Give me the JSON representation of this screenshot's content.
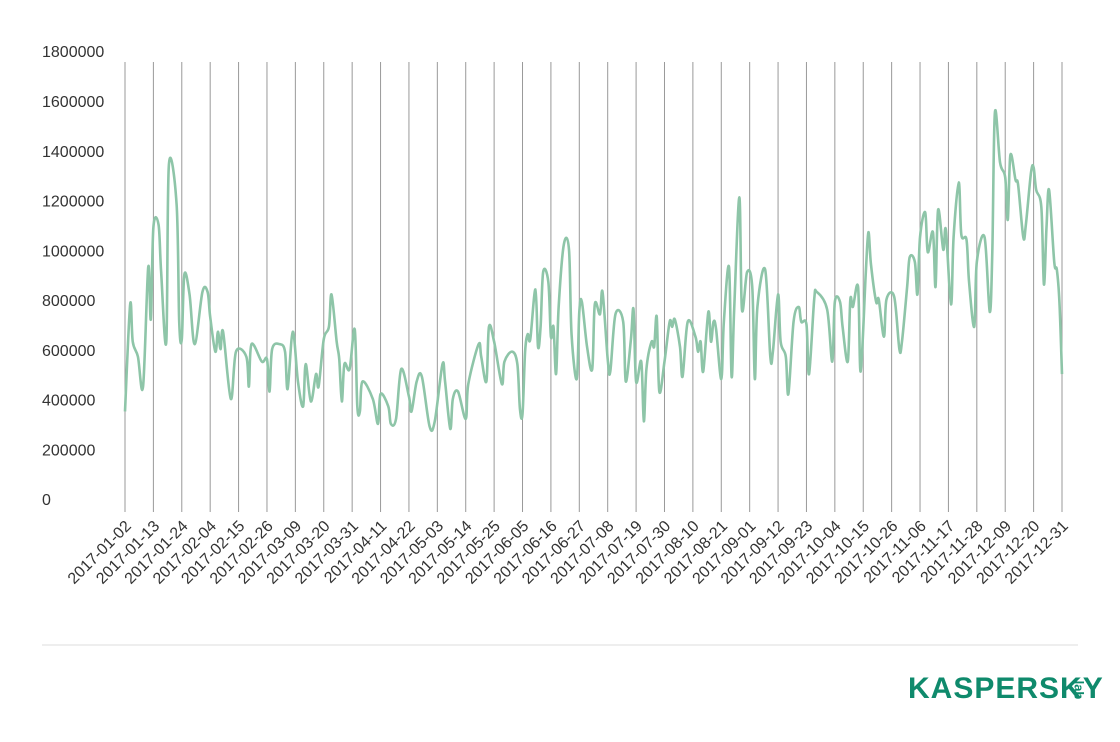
{
  "chart_data": {
    "type": "line",
    "x": [
      "2017-01-02",
      "2017-01-04",
      "2017-01-05",
      "2017-01-07",
      "2017-01-09",
      "2017-01-11",
      "2017-01-12",
      "2017-01-13",
      "2017-01-15",
      "2017-01-16",
      "2017-01-18",
      "2017-01-19",
      "2017-01-22",
      "2017-01-23",
      "2017-01-24",
      "2017-01-25",
      "2017-01-27",
      "2017-01-29",
      "2017-02-01",
      "2017-02-03",
      "2017-02-04",
      "2017-02-06",
      "2017-02-07",
      "2017-02-08",
      "2017-02-09",
      "2017-02-12",
      "2017-02-14",
      "2017-02-18",
      "2017-02-19",
      "2017-02-20",
      "2017-02-24",
      "2017-02-26",
      "2017-02-27",
      "2017-02-28",
      "2017-03-03",
      "2017-03-05",
      "2017-03-06",
      "2017-03-08",
      "2017-03-10",
      "2017-03-12",
      "2017-03-13",
      "2017-03-15",
      "2017-03-17",
      "2017-03-18",
      "2017-03-20",
      "2017-03-22",
      "2017-03-23",
      "2017-03-25",
      "2017-03-26",
      "2017-03-27",
      "2017-03-28",
      "2017-03-30",
      "2017-04-01",
      "2017-04-02",
      "2017-04-03",
      "2017-04-04",
      "2017-04-08",
      "2017-04-10",
      "2017-04-11",
      "2017-04-14",
      "2017-04-15",
      "2017-04-17",
      "2017-04-19",
      "2017-04-22",
      "2017-04-23",
      "2017-04-25",
      "2017-04-27",
      "2017-04-30",
      "2017-05-02",
      "2017-05-05",
      "2017-05-06",
      "2017-05-08",
      "2017-05-09",
      "2017-05-11",
      "2017-05-14",
      "2017-05-15",
      "2017-05-19",
      "2017-05-20",
      "2017-05-22",
      "2017-05-23",
      "2017-05-25",
      "2017-05-28",
      "2017-05-29",
      "2017-06-01",
      "2017-06-03",
      "2017-06-04",
      "2017-06-05",
      "2017-06-06",
      "2017-06-07",
      "2017-06-08",
      "2017-06-10",
      "2017-06-11",
      "2017-06-12",
      "2017-06-13",
      "2017-06-15",
      "2017-06-16",
      "2017-06-17",
      "2017-06-18",
      "2017-06-19",
      "2017-06-21",
      "2017-06-23",
      "2017-06-24",
      "2017-06-26",
      "2017-06-27",
      "2017-06-28",
      "2017-06-30",
      "2017-07-02",
      "2017-07-03",
      "2017-07-05",
      "2017-07-06",
      "2017-07-08",
      "2017-07-09",
      "2017-07-11",
      "2017-07-14",
      "2017-07-15",
      "2017-07-17",
      "2017-07-18",
      "2017-07-19",
      "2017-07-21",
      "2017-07-22",
      "2017-07-23",
      "2017-07-25",
      "2017-07-26",
      "2017-07-27",
      "2017-07-28",
      "2017-07-30",
      "2017-08-01",
      "2017-08-02",
      "2017-08-03",
      "2017-08-05",
      "2017-08-06",
      "2017-08-08",
      "2017-08-11",
      "2017-08-12",
      "2017-08-13",
      "2017-08-14",
      "2017-08-16",
      "2017-08-17",
      "2017-08-18",
      "2017-08-19",
      "2017-08-21",
      "2017-08-22",
      "2017-08-24",
      "2017-08-25",
      "2017-08-26",
      "2017-08-28",
      "2017-08-29",
      "2017-08-31",
      "2017-09-02",
      "2017-09-03",
      "2017-09-04",
      "2017-09-07",
      "2017-09-09",
      "2017-09-10",
      "2017-09-12",
      "2017-09-13",
      "2017-09-15",
      "2017-09-16",
      "2017-09-18",
      "2017-09-20",
      "2017-09-21",
      "2017-09-23",
      "2017-09-24",
      "2017-09-26",
      "2017-09-27",
      "2017-10-01",
      "2017-10-03",
      "2017-10-04",
      "2017-10-06",
      "2017-10-07",
      "2017-10-09",
      "2017-10-10",
      "2017-10-11",
      "2017-10-13",
      "2017-10-14",
      "2017-10-16",
      "2017-10-17",
      "2017-10-18",
      "2017-10-20",
      "2017-10-21",
      "2017-10-23",
      "2017-10-24",
      "2017-10-27",
      "2017-10-29",
      "2017-10-30",
      "2017-11-01",
      "2017-11-02",
      "2017-11-04",
      "2017-11-05",
      "2017-11-06",
      "2017-11-08",
      "2017-11-09",
      "2017-11-11",
      "2017-11-12",
      "2017-11-13",
      "2017-11-15",
      "2017-11-16",
      "2017-11-18",
      "2017-11-19",
      "2017-11-21",
      "2017-11-22",
      "2017-11-24",
      "2017-11-25",
      "2017-11-27",
      "2017-11-28",
      "2017-12-01",
      "2017-12-03",
      "2017-12-04",
      "2017-12-05",
      "2017-12-07",
      "2017-12-09",
      "2017-12-10",
      "2017-12-11",
      "2017-12-13",
      "2017-12-14",
      "2017-12-16",
      "2017-12-17",
      "2017-12-19",
      "2017-12-20",
      "2017-12-21",
      "2017-12-23",
      "2017-12-24",
      "2017-12-25",
      "2017-12-26",
      "2017-12-28",
      "2017-12-29",
      "2017-12-30",
      "2017-12-31"
    ],
    "series": [
      {
        "color": "#8ec5a8",
        "values": [
          360000,
          790000,
          640000,
          580000,
          460000,
          940000,
          730000,
          1100000,
          1110000,
          920000,
          640000,
          1350000,
          1190000,
          720000,
          650000,
          910000,
          830000,
          630000,
          840000,
          840000,
          740000,
          600000,
          680000,
          610000,
          680000,
          410000,
          600000,
          580000,
          460000,
          630000,
          560000,
          570000,
          440000,
          610000,
          630000,
          600000,
          450000,
          680000,
          480000,
          380000,
          550000,
          400000,
          510000,
          460000,
          650000,
          700000,
          830000,
          640000,
          570000,
          400000,
          550000,
          530000,
          690000,
          380000,
          360000,
          480000,
          410000,
          310000,
          430000,
          380000,
          310000,
          330000,
          530000,
          420000,
          360000,
          480000,
          500000,
          300000,
          320000,
          550000,
          480000,
          290000,
          410000,
          440000,
          330000,
          470000,
          630000,
          580000,
          480000,
          700000,
          640000,
          470000,
          560000,
          600000,
          550000,
          370000,
          350000,
          600000,
          670000,
          650000,
          850000,
          620000,
          700000,
          920000,
          880000,
          660000,
          700000,
          510000,
          780000,
          1030000,
          1010000,
          670000,
          490000,
          760000,
          800000,
          620000,
          530000,
          790000,
          750000,
          840000,
          570000,
          520000,
          750000,
          720000,
          480000,
          650000,
          770000,
          480000,
          560000,
          320000,
          530000,
          640000,
          620000,
          740000,
          440000,
          560000,
          720000,
          700000,
          730000,
          620000,
          500000,
          720000,
          660000,
          600000,
          640000,
          520000,
          760000,
          640000,
          720000,
          690000,
          490000,
          720000,
          940000,
          500000,
          770000,
          1220000,
          770000,
          920000,
          860000,
          490000,
          780000,
          930000,
          580000,
          600000,
          830000,
          640000,
          580000,
          430000,
          720000,
          780000,
          720000,
          710000,
          510000,
          810000,
          840000,
          770000,
          560000,
          800000,
          800000,
          700000,
          560000,
          810000,
          780000,
          860000,
          520000,
          920000,
          1080000,
          950000,
          800000,
          810000,
          660000,
          810000,
          820000,
          610000,
          640000,
          860000,
          980000,
          960000,
          830000,
          1060000,
          1160000,
          1000000,
          1080000,
          860000,
          1170000,
          1010000,
          1090000,
          790000,
          1060000,
          1280000,
          1070000,
          1050000,
          880000,
          700000,
          960000,
          1060000,
          760000,
          1000000,
          1560000,
          1360000,
          1300000,
          1130000,
          1390000,
          1290000,
          1270000,
          1060000,
          1110000,
          1320000,
          1340000,
          1250000,
          1180000,
          870000,
          1100000,
          1250000,
          960000,
          930000,
          800000,
          510000
        ]
      }
    ],
    "xlim": [
      "2017-01-02",
      "2017-12-31"
    ],
    "xticks": [
      "2017-01-02",
      "2017-01-13",
      "2017-01-24",
      "2017-02-04",
      "2017-02-15",
      "2017-02-26",
      "2017-03-09",
      "2017-03-20",
      "2017-03-31",
      "2017-04-11",
      "2017-04-22",
      "2017-05-03",
      "2017-05-14",
      "2017-05-25",
      "2017-06-05",
      "2017-06-16",
      "2017-06-27",
      "2017-07-08",
      "2017-07-19",
      "2017-07-30",
      "2017-08-10",
      "2017-08-21",
      "2017-09-01",
      "2017-09-12",
      "2017-09-23",
      "2017-10-04",
      "2017-10-15",
      "2017-10-26",
      "2017-11-06",
      "2017-11-17",
      "2017-11-28",
      "2017-12-09",
      "2017-12-20",
      "2017-12-31"
    ],
    "ylim": [
      0,
      1800000
    ],
    "yticks": [
      0,
      200000,
      400000,
      600000,
      800000,
      1000000,
      1200000,
      1400000,
      1600000,
      1800000
    ],
    "grid": "x"
  },
  "logo": {
    "name": "KASPERSKY",
    "suffix": "lab"
  }
}
